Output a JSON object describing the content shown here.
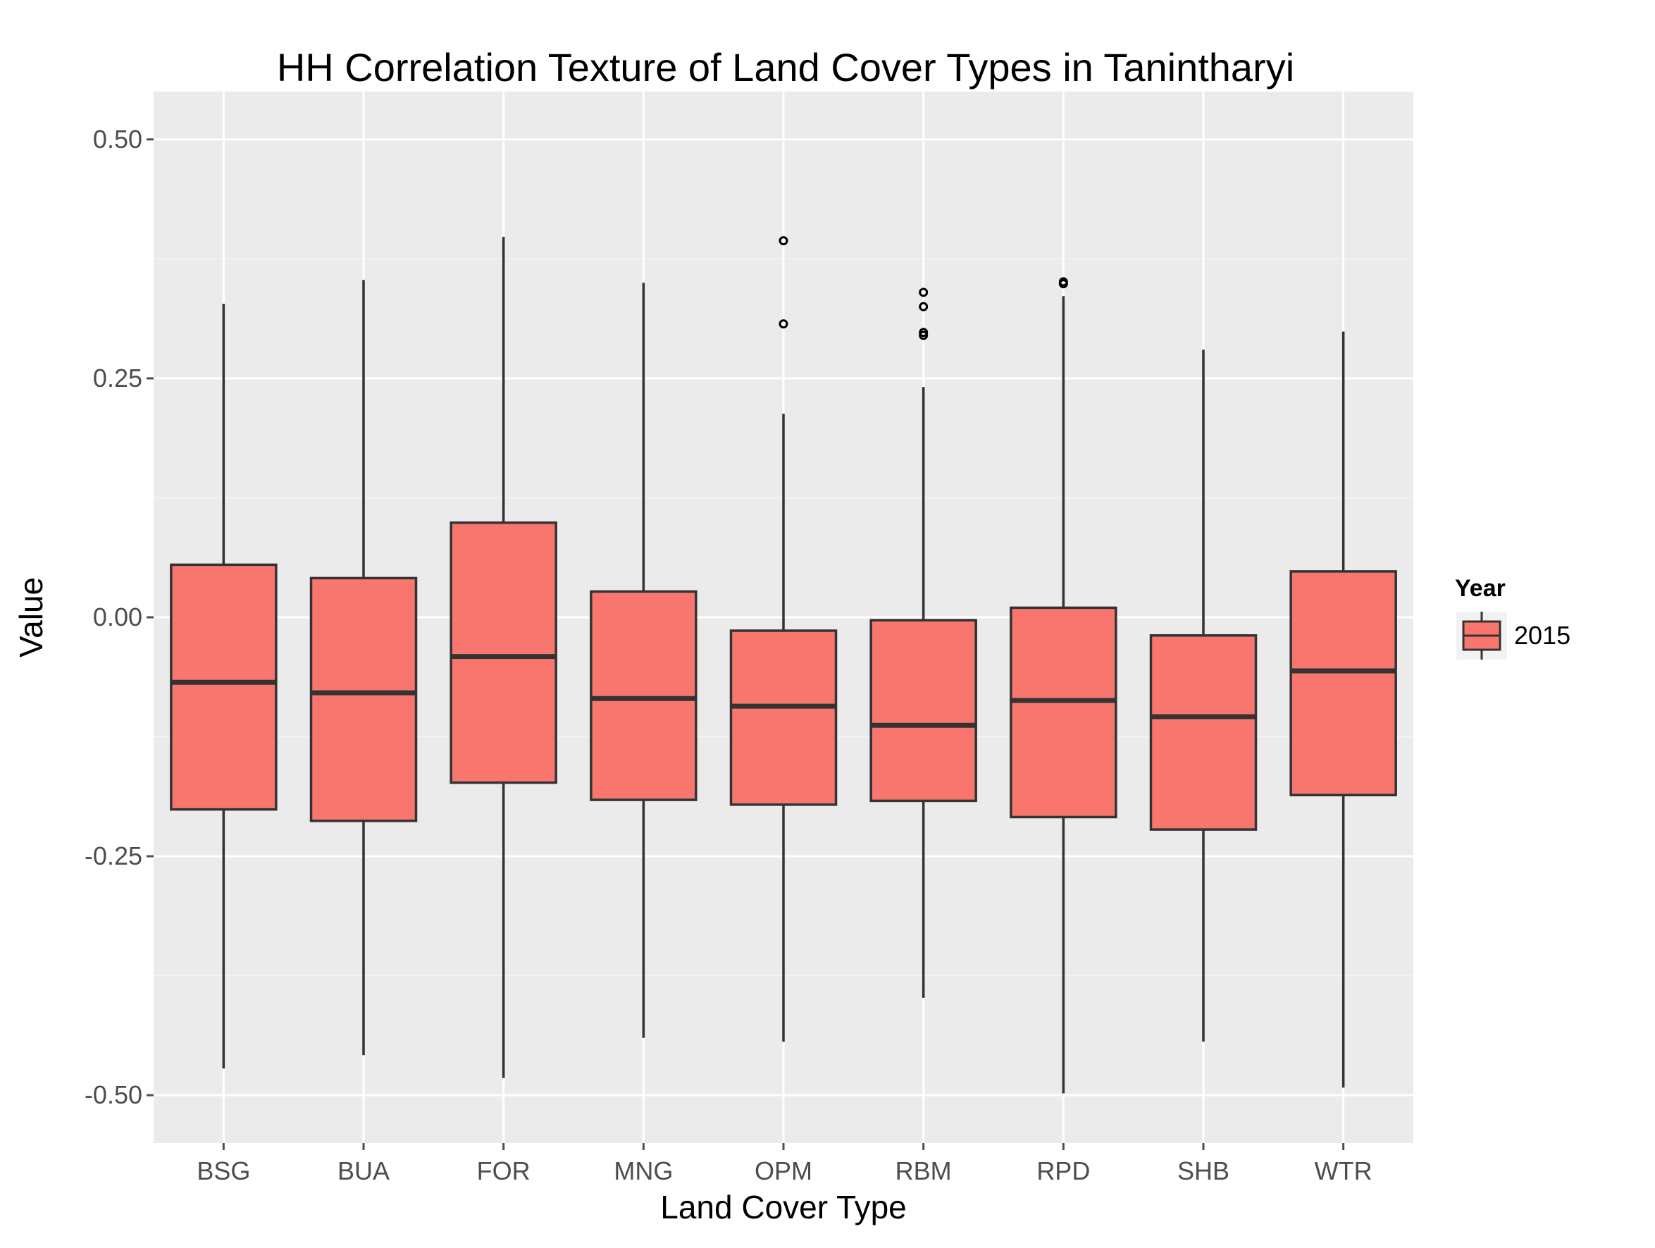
{
  "chart_data": {
    "type": "boxplot",
    "title": "HH Correlation Texture of Land Cover Types in Tanintharyi",
    "xlabel": "Land Cover Type",
    "ylabel": "Value",
    "ylim": [
      -0.55,
      0.55
    ],
    "yticks": [
      0.5,
      0.25,
      0.0,
      -0.25,
      -0.5
    ],
    "ytick_labels": [
      "0.50",
      "0.25",
      "0.00",
      "-0.25",
      "-0.50"
    ],
    "grid": true,
    "legend": {
      "title": "Year",
      "position": "right",
      "entries": [
        "2015"
      ]
    },
    "colors": {
      "fill": "#f8766d",
      "outline": "#333333",
      "panel": "#ebebeb",
      "grid": "#ffffff"
    },
    "categories": [
      "BSG",
      "BUA",
      "FOR",
      "MNG",
      "OPM",
      "RBM",
      "RPD",
      "SHB",
      "WTR"
    ],
    "boxes": [
      {
        "category": "BSG",
        "whisker_low": -0.472,
        "q1": -0.201,
        "median": -0.068,
        "q3": 0.055,
        "whisker_high": 0.328,
        "outliers": []
      },
      {
        "category": "BUA",
        "whisker_low": -0.458,
        "q1": -0.213,
        "median": -0.079,
        "q3": 0.041,
        "whisker_high": 0.353,
        "outliers": []
      },
      {
        "category": "FOR",
        "whisker_low": -0.482,
        "q1": -0.173,
        "median": -0.041,
        "q3": 0.099,
        "whisker_high": 0.398,
        "outliers": []
      },
      {
        "category": "MNG",
        "whisker_low": -0.44,
        "q1": -0.191,
        "median": -0.085,
        "q3": 0.027,
        "whisker_high": 0.35,
        "outliers": []
      },
      {
        "category": "OPM",
        "whisker_low": -0.444,
        "q1": -0.196,
        "median": -0.093,
        "q3": -0.014,
        "whisker_high": 0.213,
        "outliers": [
          0.307,
          0.394
        ]
      },
      {
        "category": "RBM",
        "whisker_low": -0.398,
        "q1": -0.192,
        "median": -0.113,
        "q3": -0.003,
        "whisker_high": 0.241,
        "outliers": [
          0.295,
          0.298,
          0.325,
          0.34
        ]
      },
      {
        "category": "RPD",
        "whisker_low": -0.498,
        "q1": -0.209,
        "median": -0.087,
        "q3": 0.01,
        "whisker_high": 0.336,
        "outliers": [
          0.349,
          0.351
        ]
      },
      {
        "category": "SHB",
        "whisker_low": -0.444,
        "q1": -0.222,
        "median": -0.104,
        "q3": -0.019,
        "whisker_high": 0.28,
        "outliers": []
      },
      {
        "category": "WTR",
        "whisker_low": -0.492,
        "q1": -0.186,
        "median": -0.056,
        "q3": 0.048,
        "whisker_high": 0.299,
        "outliers": []
      }
    ]
  }
}
